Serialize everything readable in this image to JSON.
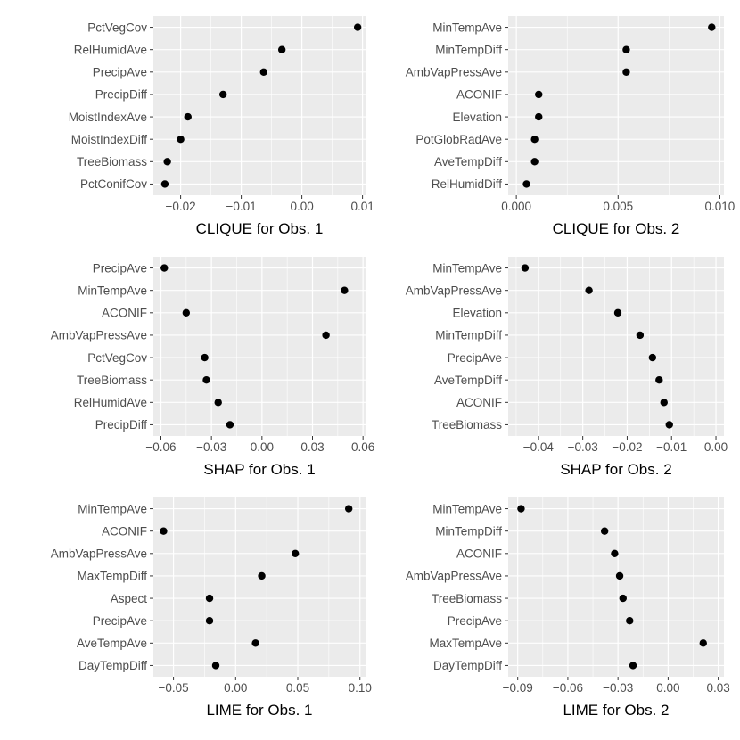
{
  "chart_data": [
    {
      "type": "scatter",
      "title": "",
      "xlabel": "CLIQUE for Obs. 1",
      "xlim": [
        -0.0245,
        0.0105
      ],
      "xticks": [
        -0.02,
        -0.01,
        0.0,
        0.01
      ],
      "xtick_labels": [
        "−0.02",
        "−0.01",
        "0.00",
        "0.01"
      ],
      "features": [
        "PctVegCov",
        "RelHumidAve",
        "PrecipAve",
        "PrecipDiff",
        "MoistIndexAve",
        "MoistIndexDiff",
        "TreeBiomass",
        "PctConifCov"
      ],
      "values": [
        0.0092,
        -0.0033,
        -0.0063,
        -0.013,
        -0.0188,
        -0.02,
        -0.0222,
        -0.0226
      ]
    },
    {
      "type": "scatter",
      "title": "",
      "xlabel": "CLIQUE for Obs. 2",
      "xlim": [
        -0.0004,
        0.0102
      ],
      "xticks": [
        0.0,
        0.005,
        0.01
      ],
      "xtick_labels": [
        "0.000",
        "0.005",
        "0.010"
      ],
      "features": [
        "MinTempAve",
        "MinTempDiff",
        "AmbVapPressAve",
        "ACONIF",
        "Elevation",
        "PotGlobRadAve",
        "AveTempDiff",
        "RelHumidDiff"
      ],
      "values": [
        0.0096,
        0.0054,
        0.0054,
        0.0011,
        0.0011,
        0.0009,
        0.0009,
        0.0005
      ]
    },
    {
      "type": "scatter",
      "title": "",
      "xlabel": "SHAP for Obs. 1",
      "xlim": [
        -0.0645,
        0.0615
      ],
      "xticks": [
        -0.06,
        -0.03,
        0.0,
        0.03,
        0.06
      ],
      "xtick_labels": [
        "−0.06",
        "−0.03",
        "0.00",
        "0.03",
        "0.06"
      ],
      "features": [
        "PrecipAve",
        "MinTempAve",
        "ACONIF",
        "AmbVapPressAve",
        "PctVegCov",
        "TreeBiomass",
        "RelHumidAve",
        "PrecipDiff"
      ],
      "values": [
        -0.058,
        0.049,
        -0.045,
        0.038,
        -0.034,
        -0.033,
        -0.026,
        -0.019
      ]
    },
    {
      "type": "scatter",
      "title": "",
      "xlabel": "SHAP for Obs. 2",
      "xlim": [
        -0.0468,
        0.0018
      ],
      "xticks": [
        -0.04,
        -0.03,
        -0.02,
        -0.01,
        0.0
      ],
      "xtick_labels": [
        "−0.04",
        "−0.03",
        "−0.02",
        "−0.01",
        "0.00"
      ],
      "features": [
        "MinTempAve",
        "AmbVapPressAve",
        "Elevation",
        "MinTempDiff",
        "PrecipAve",
        "AveTempDiff",
        "ACONIF",
        "TreeBiomass"
      ],
      "values": [
        -0.043,
        -0.0286,
        -0.0221,
        -0.0171,
        -0.0143,
        -0.0128,
        -0.0117,
        -0.0105
      ]
    },
    {
      "type": "scatter",
      "title": "",
      "xlabel": "LIME for Obs. 1",
      "xlim": [
        -0.0662,
        0.1045
      ],
      "xticks": [
        -0.05,
        0.0,
        0.05,
        0.1
      ],
      "xtick_labels": [
        "−0.05",
        "0.00",
        "0.05",
        "0.10"
      ],
      "features": [
        "MinTempAve",
        "ACONIF",
        "AmbVapPressAve",
        "MaxTempDiff",
        "Aspect",
        "PrecipAve",
        "AveTempAve",
        "DayTempDiff"
      ],
      "values": [
        0.091,
        -0.058,
        0.048,
        0.021,
        -0.021,
        -0.021,
        0.016,
        -0.016
      ]
    },
    {
      "type": "scatter",
      "title": "",
      "xlabel": "LIME for Obs. 2",
      "xlim": [
        -0.0957,
        0.0334
      ],
      "xticks": [
        -0.09,
        -0.06,
        -0.03,
        0.0,
        0.03
      ],
      "xtick_labels": [
        "−0.09",
        "−0.06",
        "−0.03",
        "0.00",
        "0.03"
      ],
      "features": [
        "MinTempAve",
        "MinTempDiff",
        "ACONIF",
        "AmbVapPressAve",
        "TreeBiomass",
        "PrecipAve",
        "MaxTempAve",
        "DayTempDiff"
      ],
      "values": [
        -0.088,
        -0.038,
        -0.032,
        -0.029,
        -0.027,
        -0.023,
        0.021,
        -0.021
      ]
    }
  ],
  "style": {
    "panel_background": "#ebebeb",
    "gridline_color": "#ffffff",
    "point_color": "#000000",
    "text_color": "#4d4d4d",
    "title_color": "#000000"
  }
}
